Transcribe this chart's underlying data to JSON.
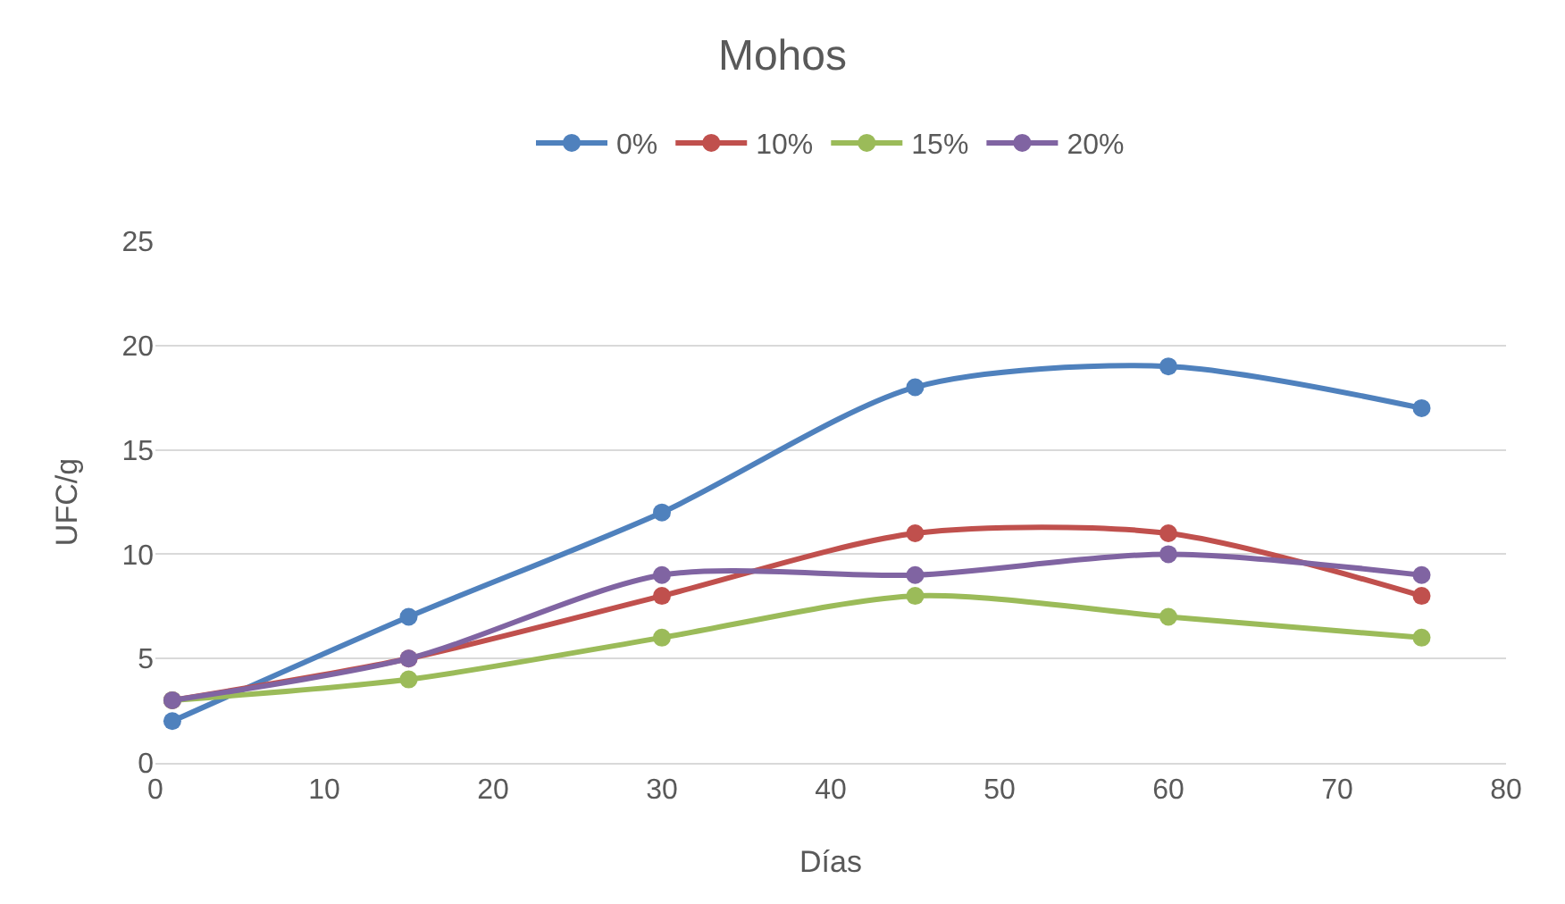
{
  "chart_data": {
    "type": "line",
    "title": "Mohos",
    "xlabel": "Días",
    "ylabel": "UFC/g",
    "x": [
      1,
      15,
      30,
      45,
      60,
      75
    ],
    "series": [
      {
        "name": "0%",
        "color": "#4f81bd",
        "values": [
          2,
          7,
          12,
          18,
          19,
          17
        ]
      },
      {
        "name": "10%",
        "color": "#c0504d",
        "values": [
          3,
          5,
          8,
          11,
          11,
          8
        ]
      },
      {
        "name": "15%",
        "color": "#9bbb59",
        "values": [
          3,
          4,
          6,
          8,
          7,
          6
        ]
      },
      {
        "name": "20%",
        "color": "#8064a2",
        "values": [
          3,
          5,
          9,
          9,
          10,
          9
        ]
      }
    ],
    "xlim": [
      0,
      80
    ],
    "xticks": [
      0,
      10,
      20,
      30,
      40,
      50,
      60,
      70,
      80
    ],
    "ylim": [
      0,
      25
    ],
    "yticks": [
      0,
      5,
      10,
      15,
      20,
      25
    ],
    "grid": "y",
    "legend": "top",
    "marker": "circle",
    "line_style": "solid"
  }
}
